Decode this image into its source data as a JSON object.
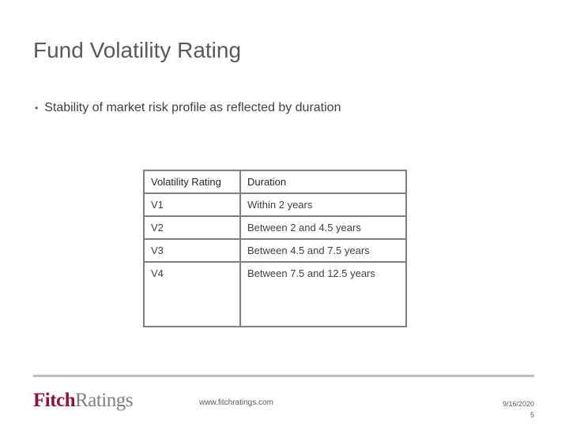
{
  "slide": {
    "title": "Fund Volatility Rating",
    "bullets": [
      "Stability of market risk profile as reflected by duration"
    ]
  },
  "table": {
    "headers": [
      "Volatility Rating",
      "Duration"
    ],
    "rows": [
      [
        "V1",
        "Within 2 years"
      ],
      [
        "V2",
        "Between 2 and 4.5 years"
      ],
      [
        "V3",
        "Between 4.5 and 7.5 years"
      ],
      [
        "V4",
        "Between 7.5 and 12.5 years"
      ]
    ]
  },
  "footer": {
    "logo_part1": "Fitch",
    "logo_part2": "Ratings",
    "url": "www.fitchratings.com",
    "date": "9/16/2020",
    "page": "5"
  },
  "colors": {
    "brand": "#8a1538",
    "text": "#595959",
    "border": "#7f7f7f"
  }
}
